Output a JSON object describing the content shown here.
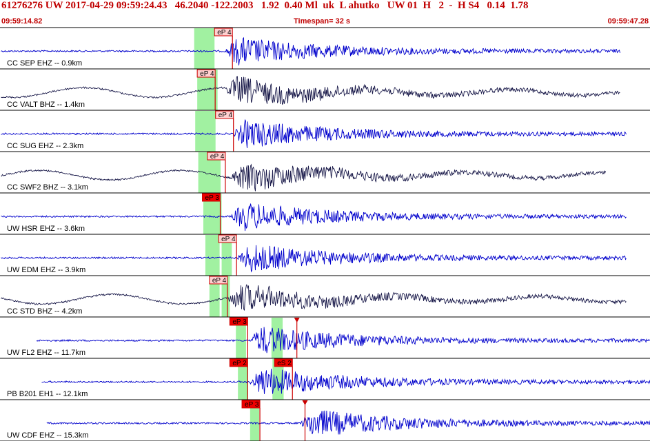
{
  "header": {
    "text": "61276276 UW 2017-04-29 09:59:24.43   46.2040 -122.2003   1.92  0.40 Ml  uk  L ahutko   UW 01  H   2  -  H S4   0.14  1.78",
    "start_time": "09:59:14.82",
    "timespan": "Timespan=  32 s",
    "end_time": "09:59:47.28"
  },
  "colors": {
    "header": "#c00000",
    "trace_blue": "#0000cc",
    "trace_dark": "#1a1a4a",
    "pick_window": "#90ee90",
    "pick_line": "#cc0000",
    "pick_box_weak": "#ffd0d0",
    "pick_box_strong": "#ee0000"
  },
  "traces": [
    {
      "label": "CC SEP EHZ -- 0.9km",
      "color": "blue",
      "picks": [
        {
          "text": "eP 4",
          "t": 10.55,
          "style": "weak"
        }
      ],
      "windows": [
        [
          9.55,
          10.55
        ]
      ],
      "onset": 11.1,
      "noise_end": 30.5
    },
    {
      "label": "CC VALT BHZ -- 1.4km",
      "color": "dark",
      "picks": [
        {
          "text": "eP 4",
          "t": 9.7,
          "style": "weak"
        }
      ],
      "windows": [
        [
          9.7,
          10.7
        ]
      ],
      "onset": 11.1,
      "noise_end": 30.5
    },
    {
      "label": "CC SUG EHZ -- 2.3km",
      "color": "blue",
      "picks": [
        {
          "text": "eP 4",
          "t": 10.6,
          "style": "weak"
        }
      ],
      "windows": [
        [
          9.6,
          10.6
        ]
      ],
      "onset": 11.5,
      "noise_end": 30.8
    },
    {
      "label": "CC SWF2 BHZ -- 3.1km",
      "color": "dark",
      "picks": [
        {
          "text": "eP 4",
          "t": 10.2,
          "style": "weak"
        }
      ],
      "windows": [
        [
          9.75,
          10.85
        ]
      ],
      "onset": 11.4,
      "noise_end": 29.8
    },
    {
      "label": "UW HSR EHZ -- 3.6km",
      "color": "blue",
      "picks": [
        {
          "text": "eP 3",
          "t": 9.95,
          "style": "strong"
        }
      ],
      "windows": [
        [
          10.0,
          10.9
        ]
      ],
      "onset": 11.4,
      "noise_end": 30.8
    },
    {
      "label": "UW EDM EHZ -- 3.9km",
      "color": "blue",
      "picks": [
        {
          "text": "eP 4",
          "t": 10.75,
          "style": "weak"
        }
      ],
      "windows": [
        [
          10.1,
          10.8
        ],
        [
          10.9,
          11.4
        ]
      ],
      "onset": 11.7,
      "noise_end": 30.8
    },
    {
      "label": "CC STD BHZ -- 4.2km",
      "color": "dark",
      "picks": [
        {
          "text": "eP 4",
          "t": 10.3,
          "style": "weak"
        }
      ],
      "windows": [
        [
          10.3,
          10.8
        ],
        [
          10.9,
          11.3
        ]
      ],
      "onset": 11.2,
      "noise_end": 30.8
    },
    {
      "label": "UW FL2 EHZ -- 11.7km",
      "color": "blue",
      "picks": [
        {
          "text": "eP 3",
          "t": 11.3,
          "style": "strong"
        },
        {
          "text": "",
          "t": 14.6,
          "style": "tri"
        }
      ],
      "windows": [
        [
          11.6,
          12.1
        ],
        [
          13.35,
          13.9
        ]
      ],
      "onset": 12.3,
      "noise_end": 32.2
    },
    {
      "label": "PB B201 EH1 -- 12.1km",
      "color": "blue",
      "picks": [
        {
          "text": "eP 2",
          "t": 11.3,
          "style": "strong"
        },
        {
          "text": "eS 2",
          "t": 13.5,
          "style": "strong"
        }
      ],
      "windows": [
        [
          11.7,
          12.2
        ],
        [
          13.4,
          13.95
        ]
      ],
      "onset": 12.3,
      "noise_end": 32.2
    },
    {
      "label": "UW CDF EHZ -- 15.3km",
      "color": "blue",
      "picks": [
        {
          "text": "eP 3",
          "t": 11.9,
          "style": "strong"
        },
        {
          "text": "",
          "t": 15.0,
          "style": "tri"
        }
      ],
      "windows": [
        [
          12.3,
          12.75
        ]
      ],
      "onset": 14.8,
      "noise_end": 32.2
    }
  ]
}
